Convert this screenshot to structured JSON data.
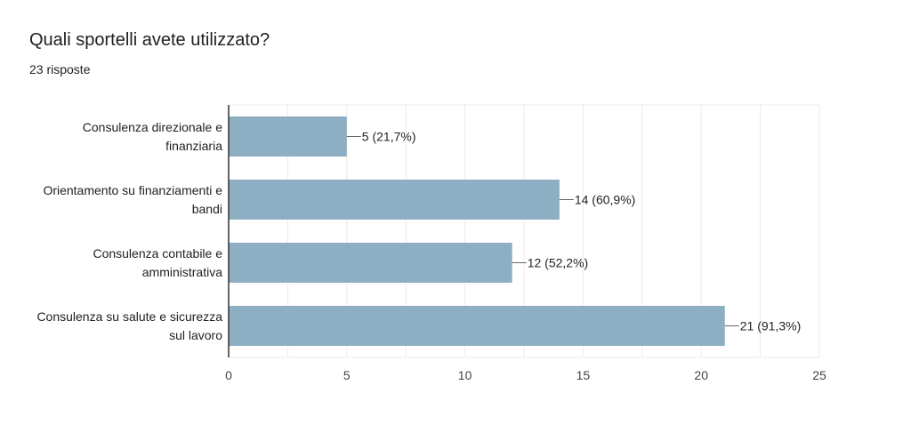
{
  "question": {
    "title": "Quali sportelli avete utilizzato?",
    "responses": "23 risposte"
  },
  "colors": {
    "bar": "#8eaec3",
    "axis": "#333333",
    "grid": "#ebebeb",
    "text": "#222222",
    "tick_text": "#444444"
  },
  "chart_data": {
    "type": "bar",
    "orientation": "horizontal",
    "categories": [
      [
        "Consulenza direzionale e",
        "finanziaria"
      ],
      [
        "Orientamento su finanziamenti e",
        "bandi"
      ],
      [
        "Consulenza contabile e",
        "amministrativa"
      ],
      [
        "Consulenza su salute e sicurezza",
        "sul lavoro"
      ]
    ],
    "values": [
      5,
      14,
      12,
      21
    ],
    "data_labels": [
      "5 (21,7%)",
      "14 (60,9%)",
      "12 (52,2%)",
      "21 (91,3%)"
    ],
    "xlim": [
      0,
      25
    ],
    "x_ticks": [
      0,
      5,
      10,
      15,
      20,
      25
    ],
    "grid": true,
    "legend": "none"
  }
}
